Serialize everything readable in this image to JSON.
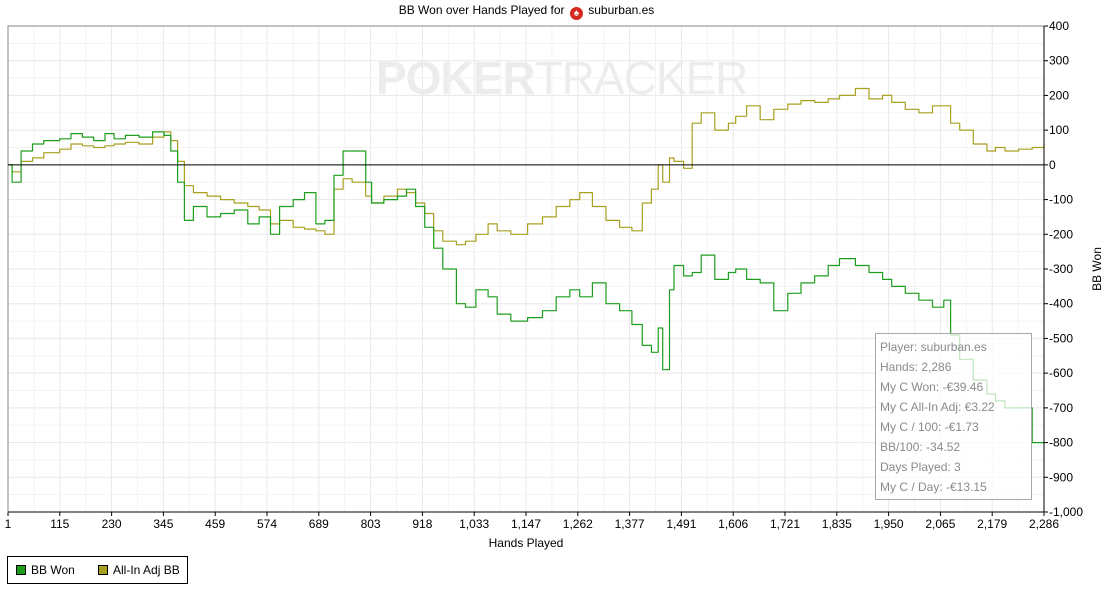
{
  "colors": {
    "bb_won": "#1e9e1e",
    "allin_adj": "#a8a020",
    "spade_badge": "#d42a1f",
    "watermark": "#ececec"
  },
  "title": {
    "prefix": "BB Won over Hands Played for",
    "icon": "spade-icon",
    "player": "suburban.es"
  },
  "watermark": {
    "poker": "POKER",
    "tracker": "TRACKER"
  },
  "info_box": {
    "rows": [
      "Player: suburban.es",
      "Hands: 2,286",
      "My C Won: -€39.46",
      "My C All-In Adj: €3.22",
      "My C / 100: -€1.73",
      "BB/100: -34.52",
      "Days Played: 3",
      "My C / Day: -€13.15"
    ]
  },
  "legend": {
    "items": [
      {
        "label": "BB Won",
        "color": "#1e9e1e"
      },
      {
        "label": "All-In Adj BB",
        "color": "#a8a020"
      }
    ]
  },
  "chart_data": {
    "type": "line",
    "title": "BB Won over Hands Played for suburban.es",
    "xlabel": "Hands Played",
    "ylabel": "BB Won",
    "xlim": [
      1,
      2286
    ],
    "ylim": [
      -1000,
      400
    ],
    "x_ticks": [
      "1",
      "115",
      "230",
      "345",
      "459",
      "574",
      "689",
      "803",
      "918",
      "1,033",
      "1,147",
      "1,262",
      "1,377",
      "1,491",
      "1,606",
      "1,721",
      "1,835",
      "1,950",
      "2,065",
      "2,179",
      "2,286"
    ],
    "y_ticks": [
      "400",
      "300",
      "200",
      "100",
      "0",
      "-100",
      "-200",
      "-300",
      "-400",
      "-500",
      "-600",
      "-700",
      "-800",
      "-900",
      "-1,000"
    ],
    "grid": true,
    "legend_position": "bottom-left",
    "series": [
      {
        "name": "BB Won",
        "color": "#1e9e1e",
        "x": [
          1,
          10,
          30,
          55,
          80,
          115,
          140,
          165,
          190,
          215,
          235,
          260,
          290,
          320,
          345,
          360,
          375,
          390,
          410,
          440,
          470,
          500,
          530,
          555,
          580,
          600,
          630,
          655,
          680,
          700,
          720,
          740,
          760,
          790,
          803,
          830,
          860,
          880,
          900,
          920,
          940,
          960,
          990,
          1010,
          1033,
          1060,
          1080,
          1110,
          1147,
          1180,
          1210,
          1240,
          1262,
          1290,
          1320,
          1350,
          1377,
          1400,
          1420,
          1435,
          1445,
          1460,
          1470,
          1491,
          1510,
          1530,
          1560,
          1590,
          1606,
          1630,
          1660,
          1690,
          1721,
          1750,
          1780,
          1810,
          1835,
          1870,
          1900,
          1930,
          1950,
          1980,
          2010,
          2040,
          2065,
          2080,
          2100,
          2130,
          2160,
          2179,
          2200,
          2230,
          2260,
          2286
        ],
        "y": [
          0,
          -50,
          40,
          60,
          70,
          75,
          90,
          80,
          70,
          90,
          75,
          85,
          80,
          95,
          85,
          40,
          -50,
          -160,
          -120,
          -150,
          -140,
          -130,
          -170,
          -150,
          -200,
          -120,
          -100,
          -80,
          -170,
          -160,
          -30,
          40,
          40,
          -50,
          -110,
          -100,
          -90,
          -70,
          -120,
          -180,
          -240,
          -300,
          -400,
          -410,
          -360,
          -380,
          -430,
          -450,
          -440,
          -420,
          -380,
          -360,
          -380,
          -340,
          -400,
          -420,
          -460,
          -520,
          -540,
          -470,
          -590,
          -360,
          -290,
          -320,
          -310,
          -260,
          -330,
          -310,
          -300,
          -330,
          -340,
          -420,
          -370,
          -340,
          -320,
          -290,
          -270,
          -290,
          -310,
          -330,
          -350,
          -370,
          -390,
          -410,
          -390,
          -490,
          -560,
          -620,
          -660,
          -680,
          -700,
          -700,
          -800,
          -800
        ]
      },
      {
        "name": "All-In Adj BB",
        "color": "#a8a020",
        "x": [
          1,
          10,
          30,
          55,
          80,
          115,
          140,
          165,
          190,
          215,
          235,
          260,
          290,
          320,
          345,
          360,
          375,
          390,
          410,
          440,
          470,
          500,
          530,
          555,
          580,
          600,
          630,
          655,
          680,
          700,
          720,
          740,
          760,
          790,
          803,
          830,
          860,
          880,
          900,
          920,
          940,
          960,
          990,
          1010,
          1033,
          1060,
          1080,
          1110,
          1147,
          1180,
          1210,
          1240,
          1262,
          1290,
          1320,
          1350,
          1377,
          1400,
          1420,
          1435,
          1445,
          1460,
          1470,
          1491,
          1510,
          1530,
          1560,
          1590,
          1606,
          1630,
          1660,
          1690,
          1721,
          1750,
          1780,
          1810,
          1835,
          1870,
          1900,
          1930,
          1950,
          1980,
          2010,
          2040,
          2065,
          2080,
          2100,
          2130,
          2160,
          2179,
          2200,
          2230,
          2260,
          2286
        ],
        "y": [
          0,
          -20,
          10,
          20,
          35,
          45,
          60,
          55,
          50,
          55,
          60,
          65,
          60,
          80,
          95,
          70,
          10,
          -60,
          -80,
          -90,
          -100,
          -110,
          -120,
          -130,
          -170,
          -160,
          -180,
          -185,
          -190,
          -200,
          -70,
          -40,
          -50,
          -90,
          -110,
          -90,
          -70,
          -80,
          -110,
          -140,
          -190,
          -220,
          -230,
          -220,
          -200,
          -170,
          -190,
          -200,
          -170,
          -150,
          -120,
          -100,
          -80,
          -120,
          -160,
          -180,
          -190,
          -110,
          -70,
          0,
          -50,
          20,
          10,
          -10,
          120,
          150,
          100,
          120,
          140,
          170,
          130,
          160,
          175,
          185,
          180,
          190,
          200,
          220,
          190,
          200,
          180,
          160,
          150,
          170,
          170,
          120,
          100,
          60,
          40,
          50,
          40,
          45,
          50,
          60
        ]
      }
    ]
  }
}
